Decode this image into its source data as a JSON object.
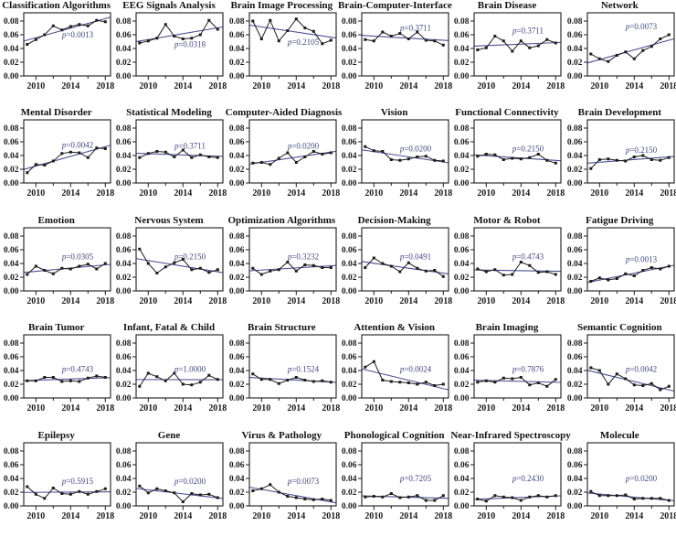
{
  "chart_data": {
    "type": "line",
    "layout": {
      "rows": 5,
      "cols": 6,
      "x": [
        2009,
        2010,
        2011,
        2012,
        2013,
        2014,
        2015,
        2016,
        2017,
        2018
      ],
      "x_tick_years": [
        2010,
        2012,
        2014,
        2016,
        2018
      ],
      "x_major_ticks": [
        2010,
        2014,
        2018
      ],
      "x_tick_labels": [
        "2010",
        "2014",
        "2018"
      ],
      "y_ticks": [
        0.0,
        0.02,
        0.04,
        0.06,
        0.08
      ],
      "y_tick_labels": [
        "0.00",
        "0.02",
        "0.04",
        "0.06",
        "0.08"
      ],
      "xlim": [
        2008.6,
        2018.6
      ],
      "ylim": [
        0,
        0.092
      ],
      "grid": "off",
      "trend": "linear-fit per subplot",
      "marker": "filled-square"
    },
    "colors": {
      "series": "#1c1c1c",
      "trend": "#4a5190",
      "p_text": "#41477e",
      "axis": "#1c1c1c",
      "title": "#111111"
    },
    "subplots": [
      {
        "title": "Classification Algorithms",
        "p_label": "p=0.0013",
        "p": "0.0013",
        "p_y": 0.06,
        "values": [
          0.046,
          0.053,
          0.06,
          0.073,
          0.067,
          0.072,
          0.075,
          0.073,
          0.081,
          0.079
        ]
      },
      {
        "title": "EEG Signals Analysis",
        "p_label": "p=0.0318",
        "p": "0.0318",
        "p_y": 0.046,
        "values": [
          0.048,
          0.051,
          0.055,
          0.075,
          0.058,
          0.054,
          0.055,
          0.06,
          0.081,
          0.068
        ]
      },
      {
        "title": "Brain Image Processing",
        "p_label": "p=0.2105",
        "p": "0.2105",
        "p_y": 0.049,
        "values": [
          0.08,
          0.054,
          0.081,
          0.051,
          0.066,
          0.083,
          0.07,
          0.065,
          0.047,
          0.052
        ]
      },
      {
        "title": "Brain-Computer-Interface",
        "p_label": "p=0.3711",
        "p": "0.3711",
        "p_y": 0.07,
        "values": [
          0.053,
          0.051,
          0.064,
          0.058,
          0.062,
          0.054,
          0.064,
          0.052,
          0.051,
          0.045
        ]
      },
      {
        "title": "Brain Disease",
        "p_label": "p=0.3711",
        "p": "0.3711",
        "p_y": 0.066,
        "values": [
          0.038,
          0.041,
          0.058,
          0.051,
          0.036,
          0.051,
          0.041,
          0.044,
          0.053,
          0.048
        ]
      },
      {
        "title": "Network",
        "p_label": "p=0.0073",
        "p": "0.0073",
        "p_y": 0.072,
        "values": [
          0.032,
          0.025,
          0.021,
          0.03,
          0.035,
          0.025,
          0.037,
          0.043,
          0.054,
          0.06
        ]
      },
      {
        "title": "Mental Disorder",
        "p_label": "p=0.0042",
        "p": "0.0042",
        "p_y": 0.055,
        "values": [
          0.015,
          0.027,
          0.026,
          0.032,
          0.043,
          0.045,
          0.044,
          0.037,
          0.051,
          0.05
        ]
      },
      {
        "title": "Statistical Modeling",
        "p_label": "p=0.3711",
        "p": "0.3711",
        "p_y": 0.054,
        "values": [
          0.037,
          0.043,
          0.046,
          0.045,
          0.038,
          0.048,
          0.037,
          0.041,
          0.038,
          0.037
        ]
      },
      {
        "title": "Computer-Aided Diagnosis",
        "p_label": "p=0.0200",
        "p": "0.0200",
        "p_y": 0.054,
        "values": [
          0.029,
          0.03,
          0.027,
          0.036,
          0.044,
          0.03,
          0.038,
          0.046,
          0.042,
          0.044
        ]
      },
      {
        "title": "Vision",
        "p_label": "p=0.0200",
        "p": "0.0200",
        "p_y": 0.05,
        "values": [
          0.053,
          0.047,
          0.046,
          0.034,
          0.033,
          0.035,
          0.038,
          0.039,
          0.033,
          0.032
        ]
      },
      {
        "title": "Functional Connectivity",
        "p_label": "p=0.2150",
        "p": "0.2150",
        "p_y": 0.05,
        "values": [
          0.039,
          0.042,
          0.041,
          0.034,
          0.036,
          0.035,
          0.037,
          0.042,
          0.033,
          0.029
        ]
      },
      {
        "title": "Brain Development",
        "p_label": "p=0.2150",
        "p": "0.2150",
        "p_y": 0.048,
        "values": [
          0.021,
          0.034,
          0.035,
          0.033,
          0.032,
          0.038,
          0.04,
          0.034,
          0.033,
          0.037
        ]
      },
      {
        "title": "Emotion",
        "p_label": "p=0.0305",
        "p": "0.0305",
        "p_y": 0.05,
        "values": [
          0.024,
          0.036,
          0.03,
          0.025,
          0.033,
          0.032,
          0.036,
          0.039,
          0.032,
          0.04
        ]
      },
      {
        "title": "Nervous System",
        "p_label": "p=0.2150",
        "p": "0.2150",
        "p_y": 0.05,
        "values": [
          0.061,
          0.04,
          0.026,
          0.035,
          0.041,
          0.046,
          0.031,
          0.033,
          0.027,
          0.031
        ]
      },
      {
        "title": "Optimization Algorithms",
        "p_label": "p=0.3232",
        "p": "0.3232",
        "p_y": 0.05,
        "values": [
          0.033,
          0.024,
          0.029,
          0.031,
          0.042,
          0.029,
          0.038,
          0.037,
          0.034,
          0.034
        ]
      },
      {
        "title": "Decision-Making",
        "p_label": "p=0.0491",
        "p": "0.0491",
        "p_y": 0.05,
        "values": [
          0.034,
          0.048,
          0.04,
          0.036,
          0.028,
          0.041,
          0.033,
          0.029,
          0.03,
          0.021
        ]
      },
      {
        "title": "Motor & Robot",
        "p_label": "p=0.4743",
        "p": "0.4743",
        "p_y": 0.05,
        "values": [
          0.032,
          0.028,
          0.031,
          0.023,
          0.024,
          0.042,
          0.037,
          0.027,
          0.028,
          0.024
        ]
      },
      {
        "title": "Fatigue Driving",
        "p_label": "p=0.0013",
        "p": "0.0013",
        "p_y": 0.046,
        "values": [
          0.014,
          0.019,
          0.016,
          0.018,
          0.025,
          0.022,
          0.03,
          0.034,
          0.032,
          0.036
        ]
      },
      {
        "title": "Brain Tumor",
        "p_label": "p=0.4743",
        "p": "0.4743",
        "p_y": 0.042,
        "values": [
          0.025,
          0.025,
          0.03,
          0.03,
          0.024,
          0.025,
          0.024,
          0.029,
          0.032,
          0.03
        ]
      },
      {
        "title": "Infant, Fatal & Child",
        "p_label": "p=1.0000",
        "p": "1.0000",
        "p_y": 0.042,
        "values": [
          0.017,
          0.036,
          0.031,
          0.025,
          0.036,
          0.02,
          0.019,
          0.023,
          0.033,
          0.027
        ]
      },
      {
        "title": "Brain Structure",
        "p_label": "p=0.1524",
        "p": "0.1524",
        "p_y": 0.042,
        "values": [
          0.035,
          0.027,
          0.027,
          0.021,
          0.026,
          0.03,
          0.026,
          0.024,
          0.025,
          0.023
        ]
      },
      {
        "title": "Attention & Vision",
        "p_label": "p=0.0024",
        "p": "0.0024",
        "p_y": 0.042,
        "values": [
          0.045,
          0.053,
          0.026,
          0.024,
          0.023,
          0.022,
          0.02,
          0.023,
          0.018,
          0.02
        ]
      },
      {
        "title": "Brain Imaging",
        "p_label": "p=0.7876",
        "p": "0.7876",
        "p_y": 0.042,
        "values": [
          0.023,
          0.025,
          0.023,
          0.029,
          0.028,
          0.03,
          0.019,
          0.022,
          0.017,
          0.027
        ]
      },
      {
        "title": "Semantic Cognition",
        "p_label": "p=0.0042",
        "p": "0.0042",
        "p_y": 0.042,
        "values": [
          0.044,
          0.04,
          0.02,
          0.035,
          0.028,
          0.019,
          0.018,
          0.021,
          0.012,
          0.017
        ]
      },
      {
        "title": "Epilepsy",
        "p_label": "p=0.5915",
        "p": "0.5915",
        "p_y": 0.036,
        "values": [
          0.028,
          0.017,
          0.011,
          0.026,
          0.018,
          0.017,
          0.021,
          0.017,
          0.021,
          0.025
        ]
      },
      {
        "title": "Gene",
        "p_label": "p=0.0200",
        "p": "0.0200",
        "p_y": 0.036,
        "values": [
          0.029,
          0.019,
          0.025,
          0.022,
          0.019,
          0.006,
          0.018,
          0.016,
          0.017,
          0.012
        ]
      },
      {
        "title": "Virus & Pathology",
        "p_label": "p=0.0073",
        "p": "0.0073",
        "p_y": 0.036,
        "values": [
          0.022,
          0.025,
          0.031,
          0.02,
          0.014,
          0.012,
          0.01,
          0.009,
          0.01,
          0.008
        ]
      },
      {
        "title": "Phonological Cognition",
        "p_label": "p=0.7205",
        "p": "0.7205",
        "p_y": 0.04,
        "values": [
          0.013,
          0.014,
          0.013,
          0.018,
          0.012,
          0.013,
          0.015,
          0.008,
          0.008,
          0.015
        ]
      },
      {
        "title": "Near-Infrared Spectroscopy",
        "p_label": "p=0.2430",
        "p": "0.2430",
        "p_y": 0.04,
        "values": [
          0.01,
          0.007,
          0.015,
          0.013,
          0.012,
          0.008,
          0.013,
          0.015,
          0.013,
          0.015
        ]
      },
      {
        "title": "Molecule",
        "p_label": "p=0.0200",
        "p": "0.0200",
        "p_y": 0.04,
        "values": [
          0.021,
          0.015,
          0.015,
          0.015,
          0.016,
          0.01,
          0.011,
          0.011,
          0.011,
          0.008
        ]
      }
    ]
  }
}
